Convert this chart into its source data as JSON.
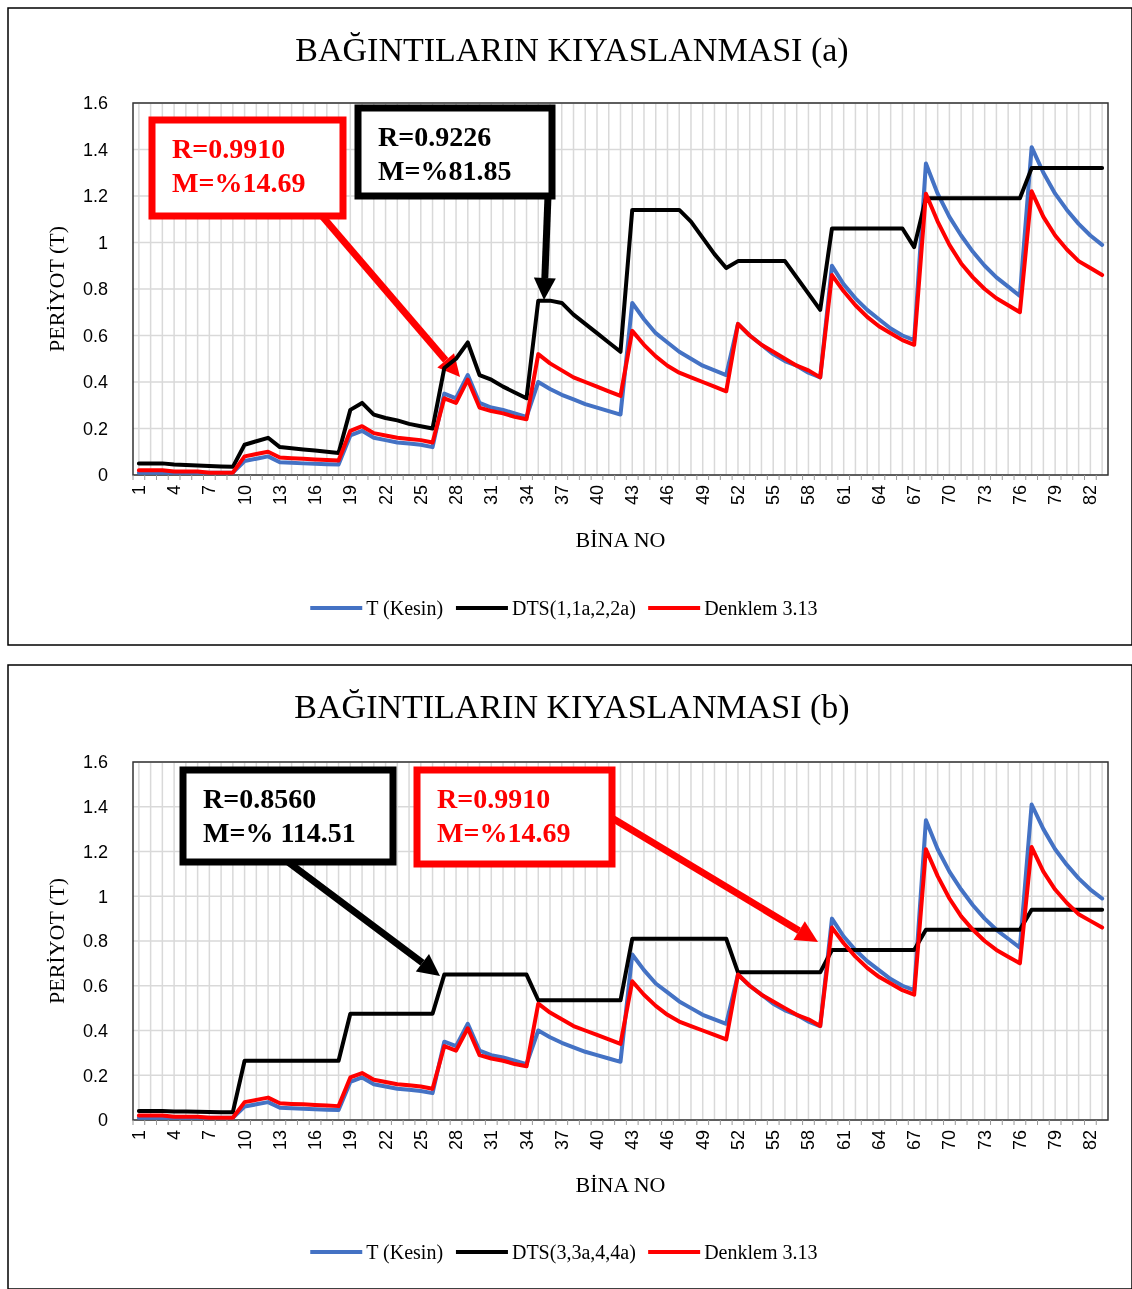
{
  "chart_data": [
    {
      "type": "line",
      "title": "BAĞINTILARIN KIYASLANMASI (a)",
      "xlabel": "BİNA NO",
      "ylabel": "PERİYOT (T)",
      "categories": [
        "1",
        null,
        null,
        "4",
        null,
        null,
        "7",
        null,
        null,
        "10",
        null,
        null,
        "13",
        null,
        null,
        "16",
        null,
        null,
        "19",
        null,
        null,
        "22",
        null,
        null,
        "25",
        null,
        null,
        "28",
        null,
        null,
        "31",
        null,
        null,
        "34",
        null,
        null,
        "37",
        null,
        null,
        "40",
        null,
        null,
        "43",
        null,
        null,
        "46",
        null,
        null,
        "49",
        null,
        null,
        "52",
        null,
        null,
        "55",
        null,
        null,
        "58",
        null,
        null,
        "61",
        null,
        null,
        "64",
        null,
        null,
        "67",
        null,
        null,
        "70",
        null,
        null,
        "73",
        null,
        null,
        "76",
        null,
        null,
        "79",
        null,
        null,
        "82",
        null
      ],
      "ylim": [
        0,
        1.6
      ],
      "yticks": [
        0,
        0.2,
        0.4,
        0.6,
        0.8,
        1,
        1.2,
        1.4,
        1.6
      ],
      "grid": true,
      "legend": "bottom",
      "annotations": [
        "R=0.9910\nM=%14.69",
        "R=0.9226\nM=%81.85"
      ],
      "series": [
        {
          "name": "T (Kesin)",
          "color": "#4472c4",
          "values": [
            0.01,
            0.01,
            0.01,
            0.01,
            0.01,
            0.01,
            0.01,
            0.01,
            0.01,
            0.06,
            0.07,
            0.08,
            0.055,
            0.053,
            0.05,
            0.048,
            0.046,
            0.045,
            0.17,
            0.19,
            0.16,
            0.15,
            0.14,
            0.135,
            0.13,
            0.12,
            0.35,
            0.33,
            0.43,
            0.31,
            0.29,
            0.28,
            0.265,
            0.25,
            0.4,
            0.37,
            0.345,
            0.325,
            0.305,
            0.29,
            0.275,
            0.26,
            0.74,
            0.67,
            0.61,
            0.57,
            0.53,
            0.5,
            0.47,
            0.45,
            0.43,
            0.65,
            0.6,
            0.56,
            0.52,
            0.49,
            0.47,
            0.44,
            0.42,
            0.9,
            0.82,
            0.76,
            0.71,
            0.67,
            0.63,
            0.6,
            0.58,
            1.34,
            1.21,
            1.11,
            1.03,
            0.96,
            0.9,
            0.85,
            0.81,
            0.77,
            1.41,
            1.3,
            1.21,
            1.14,
            1.08,
            1.03,
            0.99
          ]
        },
        {
          "name": "DTS(1,1a,2,2a)",
          "color": "#000000",
          "values": [
            0.05,
            0.05,
            0.05,
            0.045,
            0.043,
            0.041,
            0.039,
            0.037,
            0.035,
            0.13,
            0.145,
            0.16,
            0.12,
            0.115,
            0.11,
            0.105,
            0.1,
            0.095,
            0.28,
            0.31,
            0.26,
            0.245,
            0.235,
            0.22,
            0.21,
            0.2,
            0.46,
            0.5,
            0.57,
            0.43,
            0.41,
            0.38,
            0.355,
            0.33,
            0.75,
            0.75,
            0.74,
            0.69,
            0.65,
            0.61,
            0.57,
            0.53,
            1.14,
            1.14,
            1.14,
            1.14,
            1.14,
            1.09,
            1.02,
            0.95,
            0.89,
            0.92,
            0.92,
            0.92,
            0.92,
            0.92,
            0.85,
            0.78,
            0.71,
            1.06,
            1.06,
            1.06,
            1.06,
            1.06,
            1.06,
            1.06,
            0.98,
            1.19,
            1.19,
            1.19,
            1.19,
            1.19,
            1.19,
            1.19,
            1.19,
            1.19,
            1.32,
            1.32,
            1.32,
            1.32,
            1.32,
            1.32,
            1.32
          ]
        },
        {
          "name": "Denklem 3.13",
          "color": "#ff0000",
          "values": [
            0.02,
            0.02,
            0.02,
            0.015,
            0.015,
            0.015,
            0.01,
            0.01,
            0.01,
            0.08,
            0.09,
            0.1,
            0.075,
            0.072,
            0.07,
            0.067,
            0.065,
            0.062,
            0.19,
            0.21,
            0.18,
            0.17,
            0.16,
            0.155,
            0.15,
            0.14,
            0.33,
            0.31,
            0.41,
            0.29,
            0.275,
            0.265,
            0.25,
            0.24,
            0.52,
            0.48,
            0.45,
            0.42,
            0.4,
            0.38,
            0.36,
            0.34,
            0.62,
            0.56,
            0.51,
            0.47,
            0.44,
            0.42,
            0.4,
            0.38,
            0.36,
            0.65,
            0.6,
            0.56,
            0.53,
            0.5,
            0.47,
            0.45,
            0.42,
            0.86,
            0.79,
            0.73,
            0.68,
            0.64,
            0.61,
            0.58,
            0.56,
            1.21,
            1.09,
            0.99,
            0.91,
            0.85,
            0.8,
            0.76,
            0.73,
            0.7,
            1.22,
            1.11,
            1.03,
            0.97,
            0.92,
            0.89,
            0.86
          ]
        }
      ]
    },
    {
      "type": "line",
      "title": "BAĞINTILARIN KIYASLANMASI (b)",
      "xlabel": "BİNA NO",
      "ylabel": "PERİYOT (T)",
      "categories": [
        "1",
        null,
        null,
        "4",
        null,
        null,
        "7",
        null,
        null,
        "10",
        null,
        null,
        "13",
        null,
        null,
        "16",
        null,
        null,
        "19",
        null,
        null,
        "22",
        null,
        null,
        "25",
        null,
        null,
        "28",
        null,
        null,
        "31",
        null,
        null,
        "34",
        null,
        null,
        "37",
        null,
        null,
        "40",
        null,
        null,
        "43",
        null,
        null,
        "46",
        null,
        null,
        "49",
        null,
        null,
        "52",
        null,
        null,
        "55",
        null,
        null,
        "58",
        null,
        null,
        "61",
        null,
        null,
        "64",
        null,
        null,
        "67",
        null,
        null,
        "70",
        null,
        null,
        "73",
        null,
        null,
        "76",
        null,
        null,
        "79",
        null,
        null,
        "82",
        null
      ],
      "ylim": [
        0,
        1.6
      ],
      "yticks": [
        0,
        0.2,
        0.4,
        0.6,
        0.8,
        1,
        1.2,
        1.4,
        1.6
      ],
      "grid": true,
      "legend": "bottom",
      "annotations": [
        "R=0.8560\nM=% 114.51",
        "R=0.9910\nM=%14.69"
      ],
      "series": [
        {
          "name": "T (Kesin)",
          "color": "#4472c4",
          "values": [
            0.01,
            0.01,
            0.01,
            0.01,
            0.01,
            0.01,
            0.01,
            0.01,
            0.01,
            0.06,
            0.07,
            0.08,
            0.055,
            0.053,
            0.05,
            0.048,
            0.046,
            0.045,
            0.17,
            0.19,
            0.16,
            0.15,
            0.14,
            0.135,
            0.13,
            0.12,
            0.35,
            0.33,
            0.43,
            0.31,
            0.29,
            0.28,
            0.265,
            0.25,
            0.4,
            0.37,
            0.345,
            0.325,
            0.305,
            0.29,
            0.275,
            0.26,
            0.74,
            0.67,
            0.61,
            0.57,
            0.53,
            0.5,
            0.47,
            0.45,
            0.43,
            0.65,
            0.6,
            0.56,
            0.52,
            0.49,
            0.47,
            0.44,
            0.42,
            0.9,
            0.82,
            0.76,
            0.71,
            0.67,
            0.63,
            0.6,
            0.58,
            1.34,
            1.21,
            1.11,
            1.03,
            0.96,
            0.9,
            0.85,
            0.81,
            0.77,
            1.41,
            1.3,
            1.21,
            1.14,
            1.08,
            1.03,
            0.99
          ]
        },
        {
          "name": "DTS(3,3a,4,4a)",
          "color": "#000000",
          "values": [
            0.04,
            0.04,
            0.04,
            0.038,
            0.038,
            0.037,
            0.036,
            0.035,
            0.035,
            0.265,
            0.265,
            0.265,
            0.265,
            0.265,
            0.265,
            0.265,
            0.265,
            0.265,
            0.475,
            0.475,
            0.475,
            0.475,
            0.475,
            0.475,
            0.475,
            0.475,
            0.65,
            0.65,
            0.65,
            0.65,
            0.65,
            0.65,
            0.65,
            0.65,
            0.535,
            0.535,
            0.535,
            0.535,
            0.535,
            0.535,
            0.535,
            0.535,
            0.81,
            0.81,
            0.81,
            0.81,
            0.81,
            0.81,
            0.81,
            0.81,
            0.81,
            0.66,
            0.66,
            0.66,
            0.66,
            0.66,
            0.66,
            0.66,
            0.66,
            0.76,
            0.76,
            0.76,
            0.76,
            0.76,
            0.76,
            0.76,
            0.76,
            0.85,
            0.85,
            0.85,
            0.85,
            0.85,
            0.85,
            0.85,
            0.85,
            0.85,
            0.94,
            0.94,
            0.94,
            0.94,
            0.94,
            0.94,
            0.94
          ]
        },
        {
          "name": "Denklem 3.13",
          "color": "#ff0000",
          "values": [
            0.02,
            0.02,
            0.02,
            0.015,
            0.015,
            0.015,
            0.01,
            0.01,
            0.01,
            0.08,
            0.09,
            0.1,
            0.075,
            0.072,
            0.07,
            0.067,
            0.065,
            0.062,
            0.19,
            0.21,
            0.18,
            0.17,
            0.16,
            0.155,
            0.15,
            0.14,
            0.33,
            0.31,
            0.41,
            0.29,
            0.275,
            0.265,
            0.25,
            0.24,
            0.52,
            0.48,
            0.45,
            0.42,
            0.4,
            0.38,
            0.36,
            0.34,
            0.62,
            0.56,
            0.51,
            0.47,
            0.44,
            0.42,
            0.4,
            0.38,
            0.36,
            0.65,
            0.6,
            0.56,
            0.53,
            0.5,
            0.47,
            0.45,
            0.42,
            0.86,
            0.79,
            0.73,
            0.68,
            0.64,
            0.61,
            0.58,
            0.56,
            1.21,
            1.09,
            0.99,
            0.91,
            0.85,
            0.8,
            0.76,
            0.73,
            0.7,
            1.22,
            1.11,
            1.03,
            0.97,
            0.92,
            0.89,
            0.86
          ]
        }
      ]
    }
  ]
}
